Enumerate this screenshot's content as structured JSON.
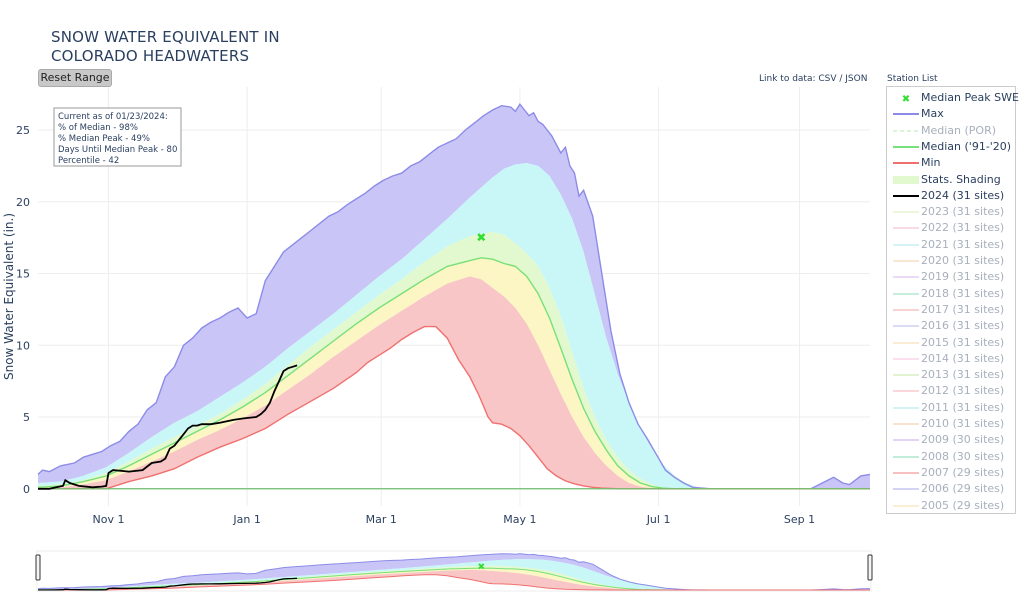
{
  "title_lines": [
    "SNOW WATER EQUIVALENT IN",
    "COLORADO HEADWATERS"
  ],
  "reset_label": "Reset Range",
  "link_to_data": "Link to data: CSV / JSON",
  "station_list": "Station List",
  "info_box": {
    "lines": [
      "Current as of 01/23/2024:",
      "% of Median - 98%",
      "% Median Peak - 49%",
      "Days Until Median Peak - 80",
      "Percentile - 42"
    ]
  },
  "colors": {
    "max": "#8c8ce8",
    "max_fill": "#c9c6f7",
    "p90_fill": "#c9f7f7",
    "p70_fill": "#e2f9cf",
    "p30_fill": "#fbf6c3",
    "min_fill": "#f8c6c6",
    "median": "#78e078",
    "median_por": "#c4ecc4",
    "min": "#f07070",
    "current": "#000000",
    "peak_marker": "#33dd33"
  },
  "legend": [
    {
      "label": "Median Peak SWE",
      "type": "marker",
      "color": "#33dd33",
      "faded": false
    },
    {
      "label": "Max",
      "type": "line",
      "color": "#8c8ce8",
      "faded": false
    },
    {
      "label": "Median (POR)",
      "type": "dash",
      "color": "#b8e8b8",
      "faded": true
    },
    {
      "label": "Median ('91-'20)",
      "type": "line",
      "color": "#78e078",
      "faded": false
    },
    {
      "label": "Min",
      "type": "line",
      "color": "#f07070",
      "faded": false
    },
    {
      "label": "Stats. Shading",
      "type": "fill",
      "color": "#e2f9cf",
      "faded": false
    },
    {
      "label": "2024 (31 sites)",
      "type": "line",
      "color": "#000000",
      "faded": false
    },
    {
      "label": "2023 (31 sites)",
      "type": "line",
      "color": "#d8eeb8",
      "faded": true
    },
    {
      "label": "2022 (31 sites)",
      "type": "line",
      "color": "#f2b8c8",
      "faded": true
    },
    {
      "label": "2021 (31 sites)",
      "type": "line",
      "color": "#a8e8ee",
      "faded": true
    },
    {
      "label": "2020 (31 sites)",
      "type": "line",
      "color": "#f4d0a8",
      "faded": true
    },
    {
      "label": "2019 (31 sites)",
      "type": "line",
      "color": "#d4b8f0",
      "faded": true
    },
    {
      "label": "2018 (31 sites)",
      "type": "line",
      "color": "#90dcb8",
      "faded": true
    },
    {
      "label": "2017 (31 sites)",
      "type": "line",
      "color": "#f0a8a8",
      "faded": true
    },
    {
      "label": "2016 (31 sites)",
      "type": "line",
      "color": "#b8b8ee",
      "faded": true
    },
    {
      "label": "2015 (31 sites)",
      "type": "line",
      "color": "#f6dca8",
      "faded": true
    },
    {
      "label": "2014 (31 sites)",
      "type": "line",
      "color": "#f8c0e0",
      "faded": true
    },
    {
      "label": "2013 (31 sites)",
      "type": "line",
      "color": "#c4e8a4",
      "faded": true
    },
    {
      "label": "2012 (31 sites)",
      "type": "line",
      "color": "#f8b0b8",
      "faded": true
    },
    {
      "label": "2011 (31 sites)",
      "type": "line",
      "color": "#a8e8ee",
      "faded": true
    },
    {
      "label": "2010 (31 sites)",
      "type": "line",
      "color": "#f4c8a0",
      "faded": true
    },
    {
      "label": "2009 (30 sites)",
      "type": "line",
      "color": "#c8a8f0",
      "faded": true
    },
    {
      "label": "2008 (30 sites)",
      "type": "line",
      "color": "#88dcb8",
      "faded": true
    },
    {
      "label": "2007 (29 sites)",
      "type": "line",
      "color": "#f08080",
      "faded": true
    },
    {
      "label": "2006 (29 sites)",
      "type": "line",
      "color": "#a8a8ee",
      "faded": true
    },
    {
      "label": "2005 (29 sites)",
      "type": "line",
      "color": "#f6e0a8",
      "faded": true
    }
  ],
  "chart_data": {
    "type": "area",
    "ylabel": "Snow Water Equivalent (in.)",
    "x_ticks": [
      "Nov 1",
      "Jan 1",
      "Mar 1",
      "May 1",
      "Jul 1",
      "Sep 1"
    ],
    "x_tick_days": [
      31,
      92,
      151,
      212,
      273,
      335
    ],
    "x_range_days": [
      0,
      366
    ],
    "y_ticks": [
      0,
      5,
      10,
      15,
      20,
      25
    ],
    "ylim": [
      -1.2,
      28
    ],
    "x_note": "x values are days since Oct 1 (water year)",
    "series": [
      {
        "name": "Max",
        "x": [
          0,
          2,
          5,
          10,
          16,
          20,
          24,
          28,
          32,
          36,
          40,
          44,
          48,
          52,
          56,
          60,
          64,
          68,
          72,
          76,
          80,
          84,
          88,
          92,
          96,
          100,
          104,
          108,
          112,
          116,
          120,
          124,
          128,
          132,
          136,
          140,
          144,
          148,
          152,
          156,
          160,
          164,
          168,
          172,
          176,
          180,
          184,
          188,
          192,
          196,
          200,
          204,
          208,
          210,
          212,
          214,
          216,
          218,
          220,
          222,
          224,
          226,
          228,
          230,
          232,
          234,
          236,
          238,
          240,
          244,
          248,
          252,
          256,
          260,
          264,
          268,
          272,
          276,
          280,
          284,
          288,
          292,
          296,
          300,
          310,
          320,
          330,
          340,
          345,
          350,
          354,
          357,
          362,
          366
        ],
        "values": [
          1.0,
          1.3,
          1.2,
          1.6,
          1.8,
          2.2,
          2.4,
          2.6,
          3.0,
          3.3,
          4.0,
          4.5,
          5.5,
          6.0,
          7.8,
          8.5,
          10.0,
          10.5,
          11.2,
          11.6,
          11.9,
          12.3,
          12.6,
          11.9,
          12.2,
          14.5,
          15.5,
          16.5,
          17.0,
          17.5,
          18.0,
          18.5,
          19.0,
          19.3,
          19.8,
          20.2,
          20.6,
          21.1,
          21.5,
          21.8,
          22.0,
          22.5,
          22.8,
          23.3,
          23.8,
          24.1,
          24.4,
          25.0,
          25.5,
          26.0,
          26.4,
          26.7,
          26.6,
          26.3,
          26.8,
          26.4,
          26.0,
          26.2,
          25.6,
          25.4,
          25.0,
          24.6,
          24.0,
          23.4,
          23.8,
          22.5,
          22.0,
          20.4,
          20.8,
          19.0,
          15.0,
          11.0,
          8.0,
          6.0,
          4.5,
          3.5,
          2.4,
          1.3,
          0.8,
          0.4,
          0.1,
          0.05,
          0,
          0,
          0,
          0,
          0,
          0,
          0.4,
          0.8,
          0.4,
          0.3,
          0.9,
          1.0
        ]
      },
      {
        "name": "90th Percentile",
        "x": [
          0,
          10,
          20,
          30,
          40,
          50,
          60,
          70,
          80,
          90,
          100,
          110,
          120,
          130,
          140,
          150,
          160,
          170,
          180,
          190,
          200,
          205,
          210,
          215,
          220,
          225,
          230,
          235,
          240,
          245,
          250,
          255,
          260,
          265,
          270,
          275,
          280,
          285,
          290,
          300,
          366
        ],
        "values": [
          0.4,
          0.5,
          0.9,
          1.5,
          2.5,
          3.6,
          4.6,
          5.4,
          6.4,
          7.4,
          8.5,
          9.8,
          11.0,
          12.2,
          13.5,
          14.8,
          16.0,
          17.4,
          18.8,
          20.3,
          21.7,
          22.3,
          22.6,
          22.7,
          22.5,
          21.8,
          20.5,
          18.8,
          16.5,
          13.5,
          10.5,
          8.0,
          6.0,
          4.2,
          2.8,
          1.7,
          0.9,
          0.4,
          0.1,
          0,
          0
        ]
      },
      {
        "name": "70th Percentile",
        "x": [
          0,
          10,
          20,
          30,
          40,
          50,
          60,
          70,
          80,
          90,
          100,
          110,
          120,
          130,
          140,
          150,
          160,
          170,
          180,
          190,
          200,
          205,
          210,
          215,
          220,
          225,
          230,
          235,
          240,
          245,
          250,
          255,
          260,
          265,
          270,
          275,
          280,
          290,
          366
        ],
        "values": [
          0.2,
          0.3,
          0.6,
          1.1,
          1.9,
          2.8,
          3.6,
          4.4,
          5.2,
          6.2,
          7.3,
          8.6,
          9.9,
          11.1,
          12.3,
          13.5,
          14.6,
          15.8,
          16.9,
          17.6,
          17.9,
          17.7,
          17.1,
          16.4,
          15.5,
          14.0,
          12.0,
          9.5,
          7.0,
          5.0,
          3.4,
          2.2,
          1.3,
          0.7,
          0.3,
          0.1,
          0,
          0,
          0
        ]
      },
      {
        "name": "Median ('91-'20)",
        "x": [
          0,
          10,
          20,
          30,
          40,
          50,
          60,
          70,
          80,
          90,
          100,
          110,
          120,
          130,
          140,
          150,
          160,
          170,
          180,
          190,
          195,
          200,
          205,
          210,
          215,
          220,
          225,
          230,
          235,
          240,
          245,
          250,
          255,
          260,
          265,
          270,
          275,
          280,
          290,
          366
        ],
        "values": [
          0.1,
          0.2,
          0.5,
          0.9,
          1.6,
          2.4,
          3.2,
          4.0,
          4.8,
          5.7,
          6.7,
          7.9,
          9.1,
          10.3,
          11.5,
          12.6,
          13.6,
          14.6,
          15.5,
          15.9,
          16.1,
          16.0,
          15.7,
          15.5,
          14.8,
          13.6,
          11.9,
          9.8,
          7.6,
          5.6,
          4.0,
          2.7,
          1.6,
          0.9,
          0.4,
          0.15,
          0.05,
          0,
          0,
          0
        ]
      },
      {
        "name": "30th Percentile",
        "x": [
          0,
          10,
          20,
          30,
          40,
          50,
          60,
          70,
          80,
          90,
          100,
          110,
          120,
          130,
          140,
          150,
          160,
          170,
          180,
          190,
          195,
          200,
          205,
          210,
          215,
          220,
          225,
          230,
          235,
          240,
          245,
          250,
          255,
          260,
          265,
          270,
          280,
          366
        ],
        "values": [
          0,
          0.1,
          0.3,
          0.6,
          1.2,
          1.9,
          2.6,
          3.4,
          4.1,
          4.9,
          5.8,
          6.9,
          8.0,
          9.2,
          10.3,
          11.4,
          12.4,
          13.4,
          14.3,
          14.8,
          14.6,
          14.0,
          13.4,
          12.6,
          11.5,
          10.0,
          8.3,
          6.6,
          5.0,
          3.6,
          2.5,
          1.6,
          0.9,
          0.4,
          0.15,
          0.05,
          0,
          0
        ]
      },
      {
        "name": "Min",
        "x": [
          0,
          20,
          30,
          40,
          50,
          60,
          70,
          80,
          90,
          100,
          110,
          120,
          130,
          140,
          145,
          150,
          155,
          160,
          165,
          170,
          175,
          180,
          185,
          190,
          194,
          198,
          200,
          204,
          208,
          212,
          216,
          220,
          224,
          228,
          232,
          236,
          240,
          244,
          248,
          252,
          256,
          260,
          266,
          366
        ],
        "values": [
          0,
          0,
          0,
          0.5,
          0.9,
          1.4,
          2.2,
          2.9,
          3.5,
          4.2,
          5.2,
          6.1,
          7.0,
          8.1,
          8.8,
          9.3,
          9.8,
          10.4,
          10.9,
          11.3,
          11.3,
          10.5,
          9.0,
          7.8,
          6.5,
          5.0,
          4.6,
          4.5,
          4.2,
          3.7,
          3.0,
          2.2,
          1.4,
          0.9,
          0.55,
          0.35,
          0.2,
          0.1,
          0.05,
          0.02,
          0,
          0,
          0,
          0
        ]
      },
      {
        "name": "2024 (31 sites)",
        "x": [
          0,
          5,
          8,
          11,
          12,
          14,
          18,
          24,
          28,
          30,
          31,
          33,
          40,
          46,
          50,
          54,
          56,
          58,
          60,
          64,
          66,
          68,
          70,
          72,
          76,
          80,
          86,
          90,
          96,
          98,
          100,
          102,
          104,
          106,
          108,
          110,
          112,
          114
        ],
        "values": [
          0,
          0,
          0.1,
          0.2,
          0.6,
          0.4,
          0.2,
          0.1,
          0.15,
          0.2,
          1.1,
          1.3,
          1.2,
          1.3,
          1.8,
          1.9,
          2.1,
          2.8,
          3.0,
          3.8,
          4.2,
          4.4,
          4.4,
          4.5,
          4.5,
          4.6,
          4.8,
          4.9,
          5.0,
          5.2,
          5.5,
          6.0,
          6.8,
          7.5,
          8.2,
          8.4,
          8.5,
          8.6
        ]
      }
    ],
    "median_peak": {
      "x": 195,
      "y": 17.5,
      "label": "Median Peak SWE"
    }
  }
}
